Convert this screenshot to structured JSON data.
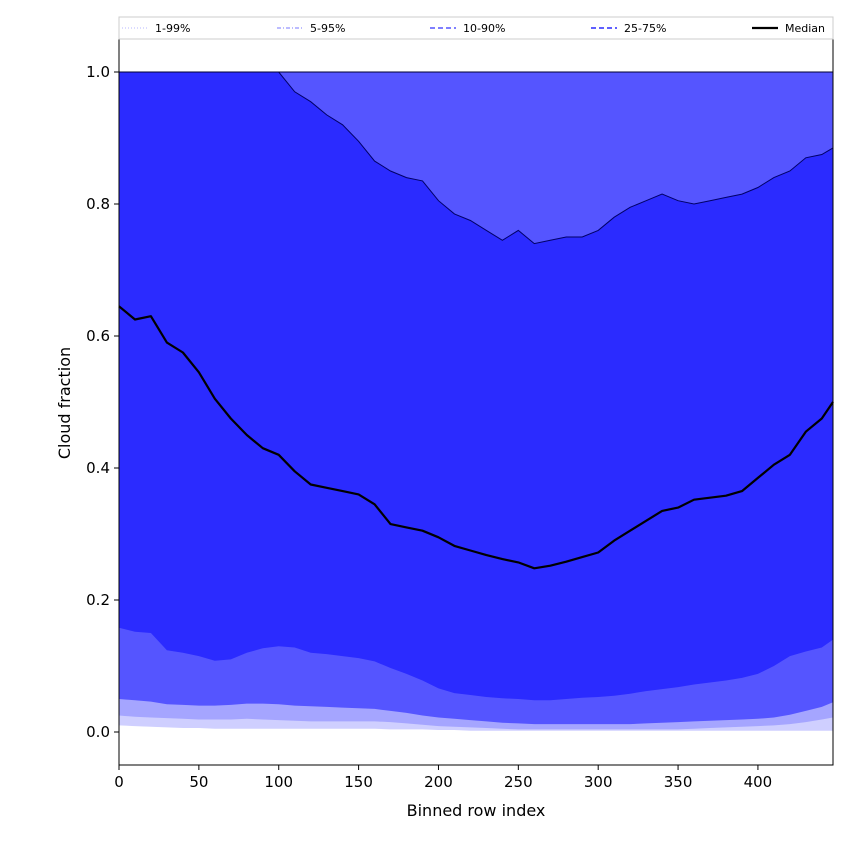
{
  "chart_data": {
    "type": "area",
    "title": "",
    "xlabel": "Binned row index",
    "ylabel": "Cloud fraction",
    "xlim": [
      0,
      447
    ],
    "ylim": [
      -0.05,
      1.05
    ],
    "x_ticks": [
      0,
      50,
      100,
      150,
      200,
      250,
      300,
      350,
      400
    ],
    "y_ticks": [
      0.0,
      0.2,
      0.4,
      0.6,
      0.8,
      1.0
    ],
    "legend_position": "top",
    "colors": {
      "band_1_99": "#cfcfff",
      "band_5_95": "#a5a5ff",
      "band_10_90": "#5555ff",
      "band_25_75": "#2b2bff",
      "median": "#000000"
    },
    "legend": [
      {
        "label": "1-99%",
        "style": "dotted"
      },
      {
        "label": "5-95%",
        "style": "dashdot"
      },
      {
        "label": "10-90%",
        "style": "dashed"
      },
      {
        "label": "25-75%",
        "style": "dashed"
      },
      {
        "label": "Median",
        "style": "solid"
      }
    ],
    "x": [
      0,
      10,
      20,
      30,
      40,
      50,
      60,
      70,
      80,
      90,
      100,
      110,
      120,
      130,
      140,
      150,
      160,
      170,
      180,
      190,
      200,
      210,
      220,
      230,
      240,
      250,
      260,
      270,
      280,
      290,
      300,
      310,
      320,
      330,
      340,
      350,
      360,
      370,
      380,
      390,
      400,
      410,
      420,
      430,
      440,
      447
    ],
    "series": [
      {
        "name": "1-99%",
        "kind": "band",
        "lower": [
          0.01,
          0.009,
          0.008,
          0.007,
          0.006,
          0.006,
          0.005,
          0.005,
          0.005,
          0.005,
          0.005,
          0.005,
          0.005,
          0.005,
          0.005,
          0.005,
          0.005,
          0.004,
          0.004,
          0.004,
          0.003,
          0.003,
          0.002,
          0.002,
          0.002,
          0.002,
          0.002,
          0.002,
          0.002,
          0.002,
          0.002,
          0.002,
          0.002,
          0.002,
          0.002,
          0.002,
          0.002,
          0.002,
          0.002,
          0.002,
          0.002,
          0.002,
          0.002,
          0.002,
          0.002,
          0.002
        ],
        "upper": [
          1.0,
          1.0,
          1.0,
          1.0,
          1.0,
          1.0,
          1.0,
          1.0,
          1.0,
          1.0,
          1.0,
          1.0,
          1.0,
          1.0,
          1.0,
          1.0,
          1.0,
          1.0,
          1.0,
          1.0,
          1.0,
          1.0,
          1.0,
          1.0,
          1.0,
          1.0,
          1.0,
          1.0,
          1.0,
          1.0,
          1.0,
          1.0,
          1.0,
          1.0,
          1.0,
          1.0,
          1.0,
          1.0,
          1.0,
          1.0,
          1.0,
          1.0,
          1.0,
          1.0,
          1.0,
          1.0
        ]
      },
      {
        "name": "5-95%",
        "kind": "band",
        "lower": [
          0.025,
          0.023,
          0.022,
          0.021,
          0.02,
          0.019,
          0.019,
          0.019,
          0.02,
          0.019,
          0.018,
          0.017,
          0.016,
          0.016,
          0.016,
          0.016,
          0.016,
          0.015,
          0.013,
          0.011,
          0.009,
          0.008,
          0.007,
          0.006,
          0.005,
          0.004,
          0.004,
          0.004,
          0.004,
          0.004,
          0.004,
          0.004,
          0.004,
          0.004,
          0.004,
          0.004,
          0.005,
          0.006,
          0.007,
          0.008,
          0.009,
          0.01,
          0.012,
          0.015,
          0.019,
          0.022
        ],
        "upper": [
          1.0,
          1.0,
          1.0,
          1.0,
          1.0,
          1.0,
          1.0,
          1.0,
          1.0,
          1.0,
          1.0,
          1.0,
          1.0,
          1.0,
          1.0,
          1.0,
          1.0,
          1.0,
          1.0,
          1.0,
          1.0,
          1.0,
          1.0,
          1.0,
          1.0,
          1.0,
          1.0,
          1.0,
          1.0,
          1.0,
          1.0,
          1.0,
          1.0,
          1.0,
          1.0,
          1.0,
          1.0,
          1.0,
          1.0,
          1.0,
          1.0,
          1.0,
          1.0,
          1.0,
          1.0,
          1.0
        ]
      },
      {
        "name": "10-90%",
        "kind": "band",
        "lower": [
          0.05,
          0.048,
          0.046,
          0.042,
          0.041,
          0.04,
          0.04,
          0.041,
          0.043,
          0.043,
          0.042,
          0.04,
          0.039,
          0.038,
          0.037,
          0.036,
          0.035,
          0.032,
          0.029,
          0.025,
          0.022,
          0.02,
          0.018,
          0.016,
          0.014,
          0.013,
          0.012,
          0.012,
          0.012,
          0.012,
          0.012,
          0.012,
          0.012,
          0.013,
          0.014,
          0.015,
          0.016,
          0.017,
          0.018,
          0.019,
          0.02,
          0.022,
          0.026,
          0.032,
          0.038,
          0.045
        ],
        "upper": [
          1.0,
          1.0,
          1.0,
          1.0,
          1.0,
          1.0,
          1.0,
          1.0,
          1.0,
          1.0,
          1.0,
          1.0,
          1.0,
          1.0,
          1.0,
          1.0,
          1.0,
          1.0,
          1.0,
          1.0,
          1.0,
          1.0,
          1.0,
          1.0,
          1.0,
          1.0,
          1.0,
          1.0,
          1.0,
          1.0,
          1.0,
          1.0,
          1.0,
          1.0,
          1.0,
          1.0,
          1.0,
          1.0,
          1.0,
          1.0,
          1.0,
          1.0,
          1.0,
          1.0,
          1.0,
          1.0
        ]
      },
      {
        "name": "25-75%",
        "kind": "band",
        "lower": [
          0.158,
          0.152,
          0.15,
          0.124,
          0.12,
          0.115,
          0.108,
          0.11,
          0.12,
          0.127,
          0.13,
          0.128,
          0.12,
          0.118,
          0.115,
          0.112,
          0.107,
          0.097,
          0.088,
          0.078,
          0.066,
          0.059,
          0.056,
          0.053,
          0.051,
          0.05,
          0.048,
          0.048,
          0.05,
          0.052,
          0.053,
          0.055,
          0.058,
          0.062,
          0.065,
          0.068,
          0.072,
          0.075,
          0.078,
          0.082,
          0.088,
          0.1,
          0.115,
          0.122,
          0.128,
          0.14
        ],
        "upper": [
          1.0,
          1.0,
          1.0,
          1.0,
          1.0,
          1.0,
          1.0,
          1.0,
          1.0,
          1.0,
          1.0,
          0.97,
          0.955,
          0.935,
          0.92,
          0.895,
          0.865,
          0.85,
          0.84,
          0.835,
          0.805,
          0.785,
          0.775,
          0.76,
          0.745,
          0.76,
          0.74,
          0.745,
          0.75,
          0.75,
          0.76,
          0.78,
          0.795,
          0.805,
          0.815,
          0.805,
          0.8,
          0.805,
          0.81,
          0.815,
          0.825,
          0.84,
          0.85,
          0.87,
          0.875,
          0.885
        ]
      },
      {
        "name": "Median",
        "kind": "line",
        "values": [
          0.645,
          0.625,
          0.63,
          0.59,
          0.575,
          0.545,
          0.505,
          0.475,
          0.45,
          0.43,
          0.42,
          0.395,
          0.375,
          0.37,
          0.365,
          0.36,
          0.345,
          0.315,
          0.31,
          0.305,
          0.295,
          0.282,
          0.275,
          0.268,
          0.262,
          0.257,
          0.248,
          0.252,
          0.258,
          0.265,
          0.272,
          0.29,
          0.305,
          0.32,
          0.335,
          0.34,
          0.352,
          0.355,
          0.358,
          0.365,
          0.385,
          0.405,
          0.42,
          0.455,
          0.475,
          0.5
        ]
      }
    ]
  }
}
